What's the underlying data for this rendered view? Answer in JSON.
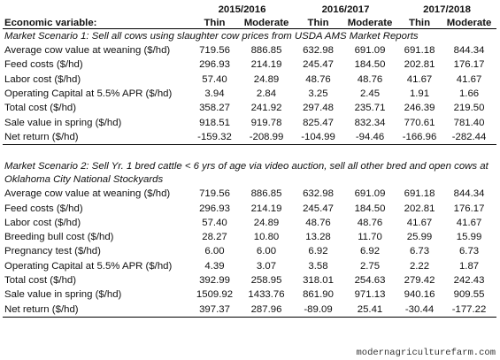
{
  "header": {
    "periods": [
      "2015/2016",
      "2016/2017",
      "2017/2018"
    ],
    "variable_label": "Economic variable:",
    "columns": [
      "Thin",
      "Moderate",
      "Thin",
      "Moderate",
      "Thin",
      "Moderate"
    ]
  },
  "scenarios": [
    {
      "title": "Market Scenario 1: Sell all cows using slaughter cow prices from USDA AMS Market Reports",
      "rows": [
        {
          "label": "Average cow value at weaning ($/hd)",
          "values": [
            "719.56",
            "886.85",
            "632.98",
            "691.09",
            "691.18",
            "844.34"
          ]
        },
        {
          "label": "Feed costs ($/hd)",
          "values": [
            "296.93",
            "214.19",
            "245.47",
            "184.50",
            "202.81",
            "176.17"
          ]
        },
        {
          "label": "Labor cost ($/hd)",
          "values": [
            "57.40",
            "24.89",
            "48.76",
            "48.76",
            "41.67",
            "41.67"
          ]
        },
        {
          "label": "Operating Capital at 5.5% APR ($/hd)",
          "values": [
            "3.94",
            "2.84",
            "3.25",
            "2.45",
            "1.91",
            "1.66"
          ]
        },
        {
          "label": "Total cost ($/hd)",
          "values": [
            "358.27",
            "241.92",
            "297.48",
            "235.71",
            "246.39",
            "219.50"
          ]
        },
        {
          "label": "Sale value in spring ($/hd)",
          "values": [
            "918.51",
            "919.78",
            "825.47",
            "832.34",
            "770.61",
            "781.40"
          ]
        },
        {
          "label": "Net return ($/hd)",
          "values": [
            "-159.32",
            "-208.99",
            "-104.99",
            "-94.46",
            "-166.96",
            "-282.44"
          ]
        }
      ]
    },
    {
      "title": "Market Scenario 2: Sell Yr. 1 bred cattle < 6 yrs of age via video auction, sell all other bred and open cows at Oklahoma City National Stockyards",
      "rows": [
        {
          "label": "Average cow value at weaning ($/hd)",
          "values": [
            "719.56",
            "886.85",
            "632.98",
            "691.09",
            "691.18",
            "844.34"
          ]
        },
        {
          "label": "Feed costs ($/hd)",
          "values": [
            "296.93",
            "214.19",
            "245.47",
            "184.50",
            "202.81",
            "176.17"
          ]
        },
        {
          "label": "Labor cost ($/hd)",
          "values": [
            "57.40",
            "24.89",
            "48.76",
            "48.76",
            "41.67",
            "41.67"
          ]
        },
        {
          "label": "Breeding bull cost ($/hd)",
          "values": [
            "28.27",
            "10.80",
            "13.28",
            "11.70",
            "25.99",
            "15.99"
          ]
        },
        {
          "label": "Pregnancy test ($/hd)",
          "values": [
            "6.00",
            "6.00",
            "6.92",
            "6.92",
            "6.73",
            "6.73"
          ]
        },
        {
          "label": "Operating Capital at 5.5% APR ($/hd)",
          "values": [
            "4.39",
            "3.07",
            "3.58",
            "2.75",
            "2.22",
            "1.87"
          ]
        },
        {
          "label": "Total cost ($/hd)",
          "values": [
            "392.99",
            "258.95",
            "318.01",
            "254.63",
            "279.42",
            "242.43"
          ]
        },
        {
          "label": "Sale value in spring ($/hd)",
          "values": [
            "1509.92",
            "1433.76",
            "861.90",
            "971.13",
            "940.16",
            "909.55"
          ]
        },
        {
          "label": "Net return ($/hd)",
          "values": [
            "397.37",
            "287.96",
            "-89.09",
            "25.41",
            "-30.44",
            "-177.22"
          ]
        }
      ]
    }
  ],
  "watermark": "modernagriculturefarm.com"
}
